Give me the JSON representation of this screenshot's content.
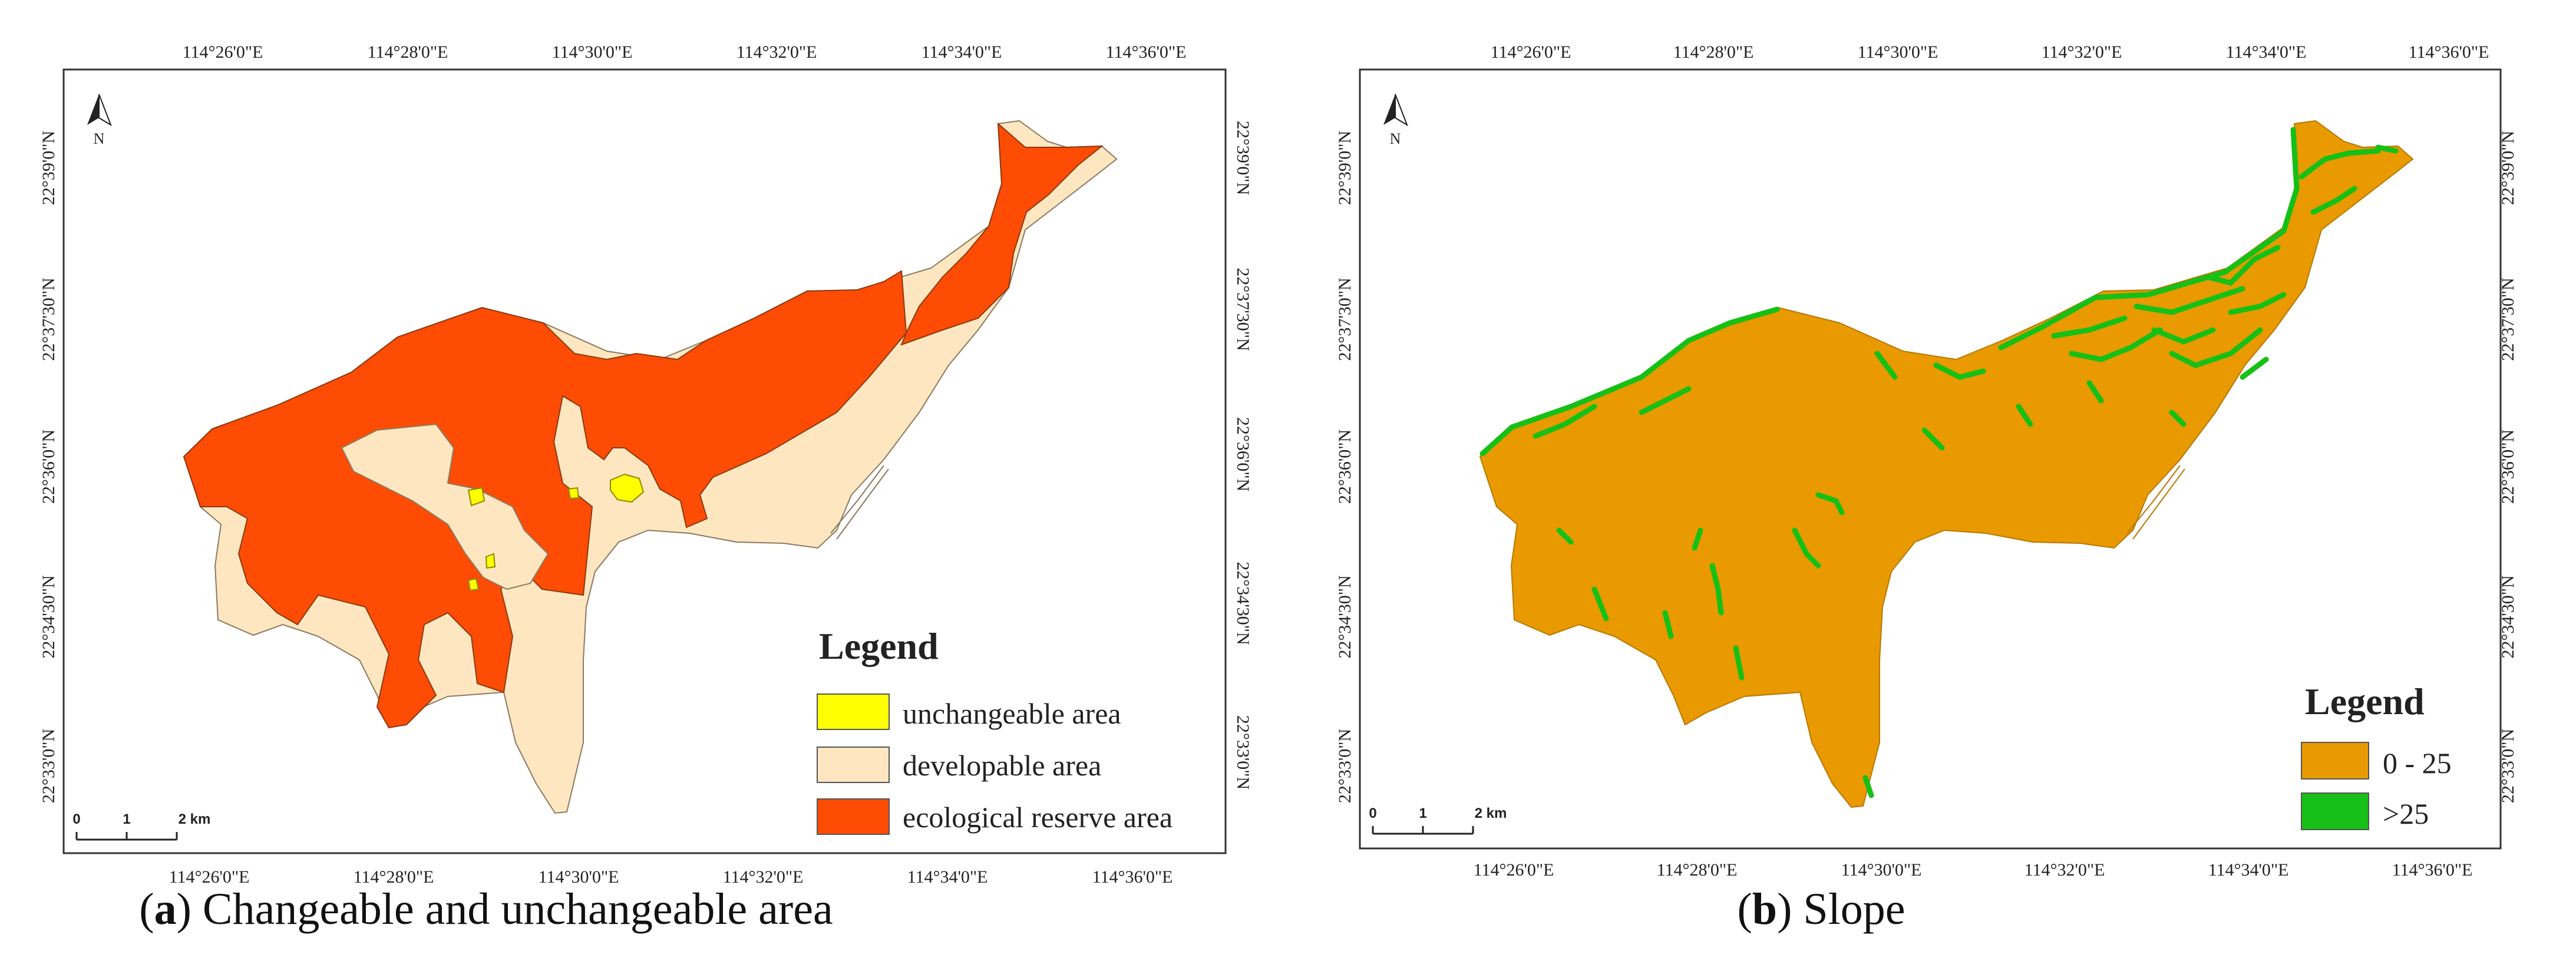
{
  "panel_a": {
    "caption_letter": "a",
    "caption_text": " Changeable and unchangeable area",
    "top_ticks": [
      "114°26'0\"E",
      "114°28'0\"E",
      "114°30'0\"E",
      "114°32'0\"E",
      "114°34'0\"E",
      "114°36'0\"E"
    ],
    "bottom_ticks": [
      "114°26'0\"E",
      "114°28'0\"E",
      "114°30'0\"E",
      "114°32'0\"E",
      "114°34'0\"E",
      "114°36'0\"E"
    ],
    "left_ticks": [
      "22°39'0\"N",
      "22°37'30\"N",
      "22°36'0\"N",
      "22°34'30\"N",
      "22°33'0\"N"
    ],
    "right_ticks": [
      "22°33'0\"N",
      "22°34'30\"N",
      "22°36'0\"N",
      "22°37'30\"N",
      "22°39'0\"N"
    ],
    "north_label": "N",
    "scalebar": {
      "labels": [
        "0",
        "1",
        "2 km"
      ]
    },
    "legend": {
      "title": "Legend",
      "items": [
        {
          "label": "unchangeable area",
          "color": "#ffff00"
        },
        {
          "label": "developable area",
          "color": "#fde6c0"
        },
        {
          "label": "ecological reserve area",
          "color": "#ff4c05"
        }
      ]
    }
  },
  "panel_b": {
    "caption_letter": "b",
    "caption_text": " Slope",
    "top_ticks": [
      "114°26'0\"E",
      "114°28'0\"E",
      "114°30'0\"E",
      "114°32'0\"E",
      "114°34'0\"E",
      "114°36'0\"E"
    ],
    "bottom_ticks": [
      "114°26'0\"E",
      "114°28'0\"E",
      "114°30'0\"E",
      "114°32'0\"E",
      "114°34'0\"E",
      "114°36'0\"E"
    ],
    "left_ticks": [
      "22°39'0\"N",
      "22°37'30\"N",
      "22°36'0\"N",
      "22°34'30\"N",
      "22°33'0\"N"
    ],
    "right_ticks": [
      "22°39'0\"N",
      "22°37'30\"N",
      "22°36'0\"N",
      "22°34'30\"N",
      "22°33'0\"N"
    ],
    "north_label": "N",
    "scalebar": {
      "labels": [
        "0",
        "1",
        "2 km"
      ]
    },
    "legend": {
      "title": "Legend",
      "items": [
        {
          "label": "0 - 25",
          "color": "#e89a00"
        },
        {
          "label": ">25",
          "color": "#16c016"
        }
      ]
    }
  }
}
